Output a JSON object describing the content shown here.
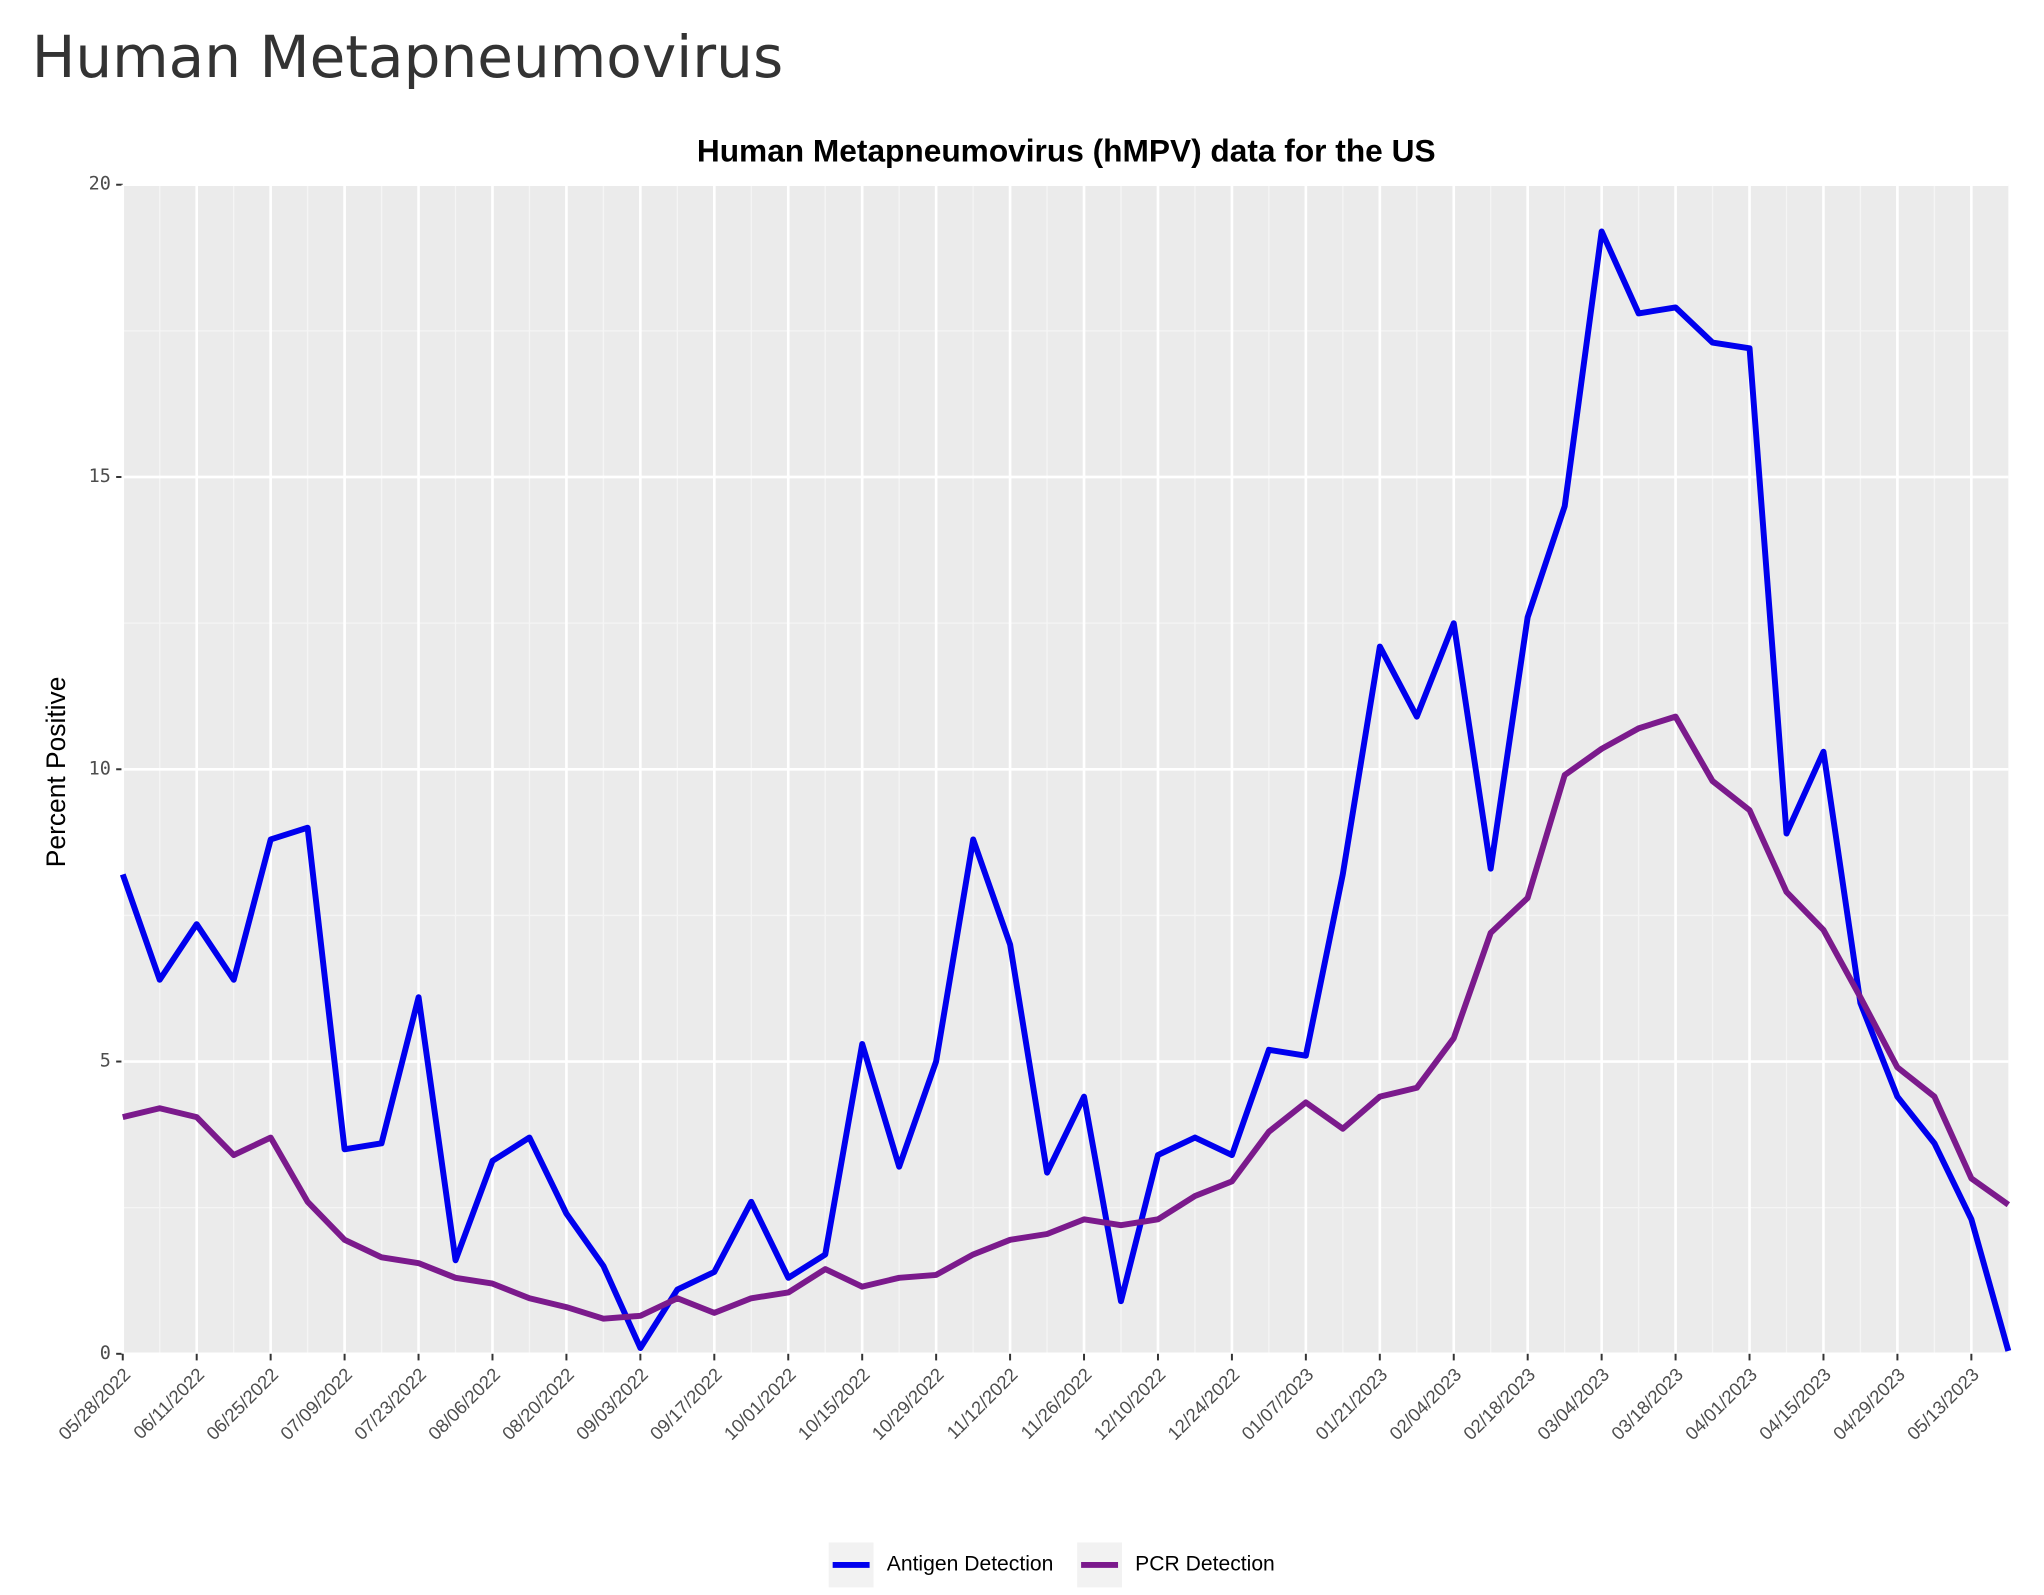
{
  "page_title": "Human Metapneumovirus",
  "chart_data": {
    "type": "line",
    "title": "Human Metapneumovirus (hMPV) data for the US",
    "y_label": "Percent Positive",
    "x": [
      "05/28/2022",
      "06/04/2022",
      "06/11/2022",
      "06/18/2022",
      "06/25/2022",
      "07/02/2022",
      "07/09/2022",
      "07/16/2022",
      "07/23/2022",
      "07/30/2022",
      "08/06/2022",
      "08/13/2022",
      "08/20/2022",
      "08/27/2022",
      "09/03/2022",
      "09/10/2022",
      "09/17/2022",
      "09/24/2022",
      "10/01/2022",
      "10/08/2022",
      "10/15/2022",
      "10/22/2022",
      "10/29/2022",
      "11/05/2022",
      "11/12/2022",
      "11/19/2022",
      "11/26/2022",
      "12/03/2022",
      "12/10/2022",
      "12/17/2022",
      "12/24/2022",
      "12/31/2022",
      "01/07/2023",
      "01/14/2023",
      "01/21/2023",
      "01/28/2023",
      "02/04/2023",
      "02/11/2023",
      "02/18/2023",
      "02/25/2023",
      "03/04/2023",
      "03/11/2023",
      "03/18/2023",
      "03/25/2023",
      "04/01/2023",
      "04/08/2023",
      "04/15/2023",
      "04/22/2023",
      "04/29/2023",
      "05/06/2023",
      "05/13/2023",
      "05/20/2023"
    ],
    "series": [
      {
        "name": "Antigen Detection",
        "color": "#0000ee",
        "values": [
          8.2,
          6.4,
          7.35,
          6.4,
          8.8,
          9.0,
          3.5,
          3.6,
          6.1,
          1.6,
          3.3,
          3.7,
          2.4,
          1.5,
          0.1,
          1.1,
          1.4,
          2.6,
          1.3,
          1.7,
          5.3,
          3.2,
          5.0,
          8.8,
          7.0,
          3.1,
          4.4,
          0.9,
          3.4,
          3.7,
          3.4,
          5.2,
          5.1,
          8.2,
          12.1,
          10.9,
          12.5,
          8.3,
          12.6,
          14.5,
          19.2,
          17.8,
          17.9,
          17.3,
          17.2,
          8.9,
          10.3,
          6.0,
          4.4,
          3.6,
          2.3,
          0.05
        ]
      },
      {
        "name": "PCR Detection",
        "color": "#7b1a8c",
        "values": [
          4.05,
          4.2,
          4.05,
          3.4,
          3.7,
          2.6,
          1.95,
          1.65,
          1.55,
          1.3,
          1.2,
          0.95,
          0.8,
          0.6,
          0.65,
          0.95,
          0.7,
          0.95,
          1.05,
          1.45,
          1.15,
          1.3,
          1.35,
          1.7,
          1.95,
          2.05,
          2.3,
          2.2,
          2.3,
          2.7,
          2.95,
          3.8,
          4.3,
          3.85,
          4.4,
          4.55,
          5.4,
          7.2,
          7.8,
          9.9,
          10.35,
          10.7,
          10.9,
          9.8,
          9.3,
          7.9,
          7.25,
          6.1,
          4.9,
          4.4,
          3.0,
          2.55
        ]
      }
    ],
    "xlim": [
      "05/28/2022",
      "05/20/2023"
    ],
    "xticks": [
      "05/28/2022",
      "06/11/2022",
      "06/25/2022",
      "07/09/2022",
      "07/23/2022",
      "08/06/2022",
      "08/20/2022",
      "09/03/2022",
      "09/17/2022",
      "10/01/2022",
      "10/15/2022",
      "10/29/2022",
      "11/12/2022",
      "11/26/2022",
      "12/10/2022",
      "12/24/2022",
      "01/07/2023",
      "01/21/2023",
      "02/04/2023",
      "02/18/2023",
      "03/04/2023",
      "03/18/2023",
      "04/01/2023",
      "04/15/2023",
      "04/29/2023",
      "05/13/2023"
    ],
    "ylim": [
      0,
      20
    ],
    "yticks": [
      0,
      5,
      10,
      15,
      20
    ],
    "grid": true,
    "legend": "bottom"
  }
}
